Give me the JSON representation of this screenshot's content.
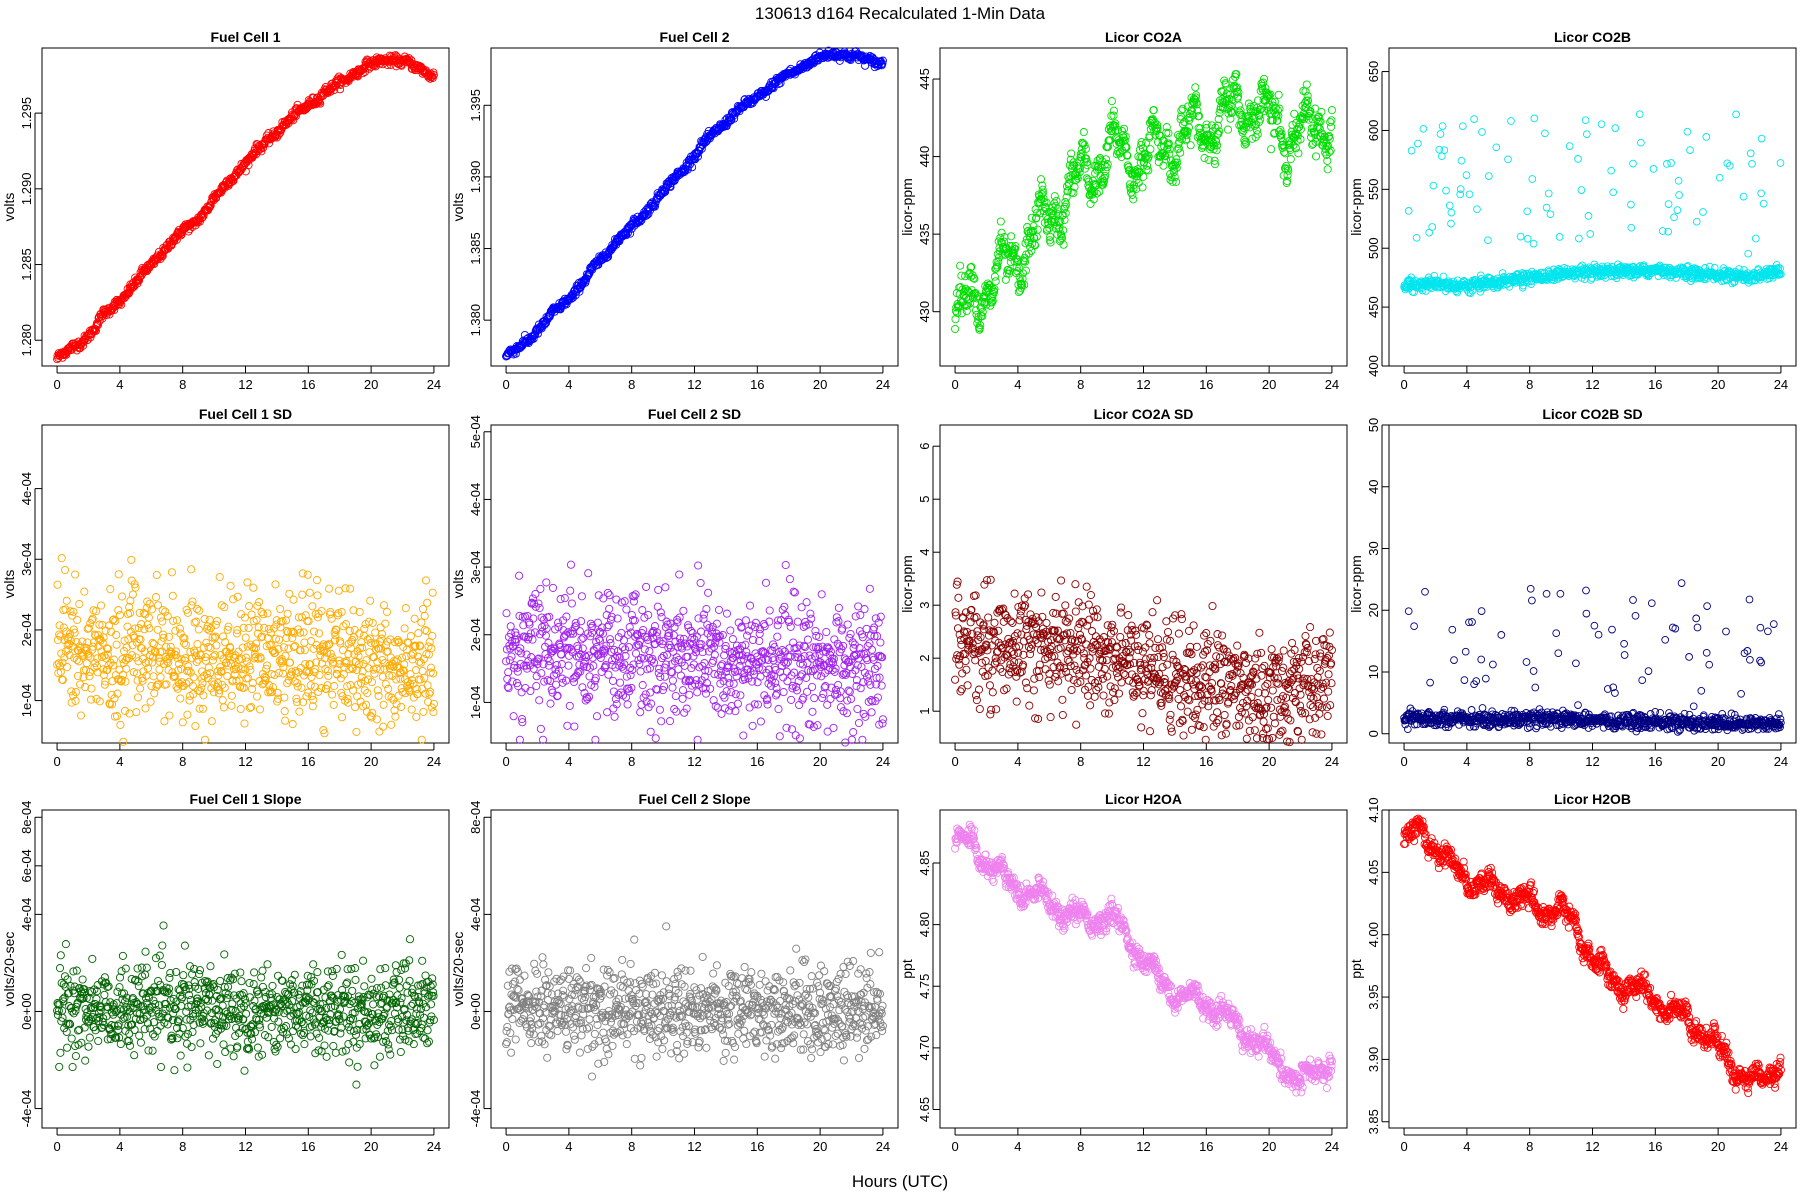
{
  "figure": {
    "title": "130613   d164   Recalculated 1-Min Data",
    "xlabel": "Hours (UTC)"
  },
  "chart_data": [
    {
      "type": "scatter",
      "title": "Fuel Cell 1",
      "ylabel": "volts",
      "color": "#ff0000",
      "xlim": [
        0,
        24
      ],
      "xticks": [
        0,
        4,
        8,
        12,
        16,
        20,
        24
      ],
      "xtick_labels": [
        "0",
        "4",
        "8",
        "12",
        "16",
        "20",
        "24"
      ],
      "ylim": [
        1.2783,
        1.2993
      ],
      "yticks": [
        1.28,
        1.285,
        1.29,
        1.295
      ],
      "ytick_labels": [
        "1.280",
        "1.285",
        "1.290",
        "1.295"
      ],
      "series": [
        {
          "x": [
            0,
            1,
            2,
            3,
            4,
            5,
            6,
            7,
            8,
            9,
            10,
            11,
            12,
            13,
            14,
            15,
            16,
            17,
            18,
            19,
            20,
            21,
            22,
            23,
            24
          ],
          "y": [
            1.2788,
            1.2795,
            1.2803,
            1.2817,
            1.2826,
            1.2838,
            1.285,
            1.2862,
            1.2872,
            1.288,
            1.2893,
            1.2906,
            1.2917,
            1.2928,
            1.2938,
            1.2947,
            1.2956,
            1.2963,
            1.297,
            1.2977,
            1.2982,
            1.2986,
            1.2984,
            1.298,
            1.2975
          ]
        }
      ]
    },
    {
      "type": "scatter",
      "title": "Fuel Cell 2",
      "ylabel": "volts",
      "color": "#0000ff",
      "xlim": [
        0,
        24
      ],
      "xticks": [
        0,
        4,
        8,
        12,
        16,
        20,
        24
      ],
      "xtick_labels": [
        "0",
        "4",
        "8",
        "12",
        "16",
        "20",
        "24"
      ],
      "ylim": [
        1.3768,
        1.399
      ],
      "yticks": [
        1.38,
        1.385,
        1.39,
        1.395
      ],
      "ytick_labels": [
        "1.380",
        "1.385",
        "1.390",
        "1.395"
      ],
      "series": [
        {
          "x": [
            0,
            1,
            2,
            3,
            4,
            5,
            6,
            7,
            8,
            9,
            10,
            11,
            12,
            13,
            14,
            15,
            16,
            17,
            18,
            19,
            20,
            21,
            22,
            23,
            24
          ],
          "y": [
            1.3775,
            1.3782,
            1.3793,
            1.3805,
            1.3815,
            1.3828,
            1.3842,
            1.3855,
            1.3865,
            1.3877,
            1.389,
            1.3902,
            1.3915,
            1.3928,
            1.3939,
            1.3948,
            1.3956,
            1.3964,
            1.3972,
            1.3978,
            1.3983,
            1.3987,
            1.3984,
            1.3982,
            1.398
          ]
        }
      ]
    },
    {
      "type": "scatter",
      "title": "Licor CO2A",
      "ylabel": "licor-ppm",
      "color": "#00dd00",
      "xlim": [
        0,
        24
      ],
      "xticks": [
        0,
        4,
        8,
        12,
        16,
        20,
        24
      ],
      "xtick_labels": [
        "0",
        "4",
        "8",
        "12",
        "16",
        "20",
        "24"
      ],
      "ylim": [
        426.5,
        447.0
      ],
      "yticks": [
        430,
        435,
        440,
        445
      ],
      "ytick_labels": [
        "430",
        "435",
        "440",
        "445"
      ],
      "series": [
        {
          "x": [
            0,
            1,
            2,
            3,
            4,
            5,
            6,
            7,
            8,
            9,
            10,
            11,
            12,
            13,
            14,
            15,
            16,
            17,
            18,
            19,
            20,
            21,
            22,
            23,
            24
          ],
          "y": [
            429.5,
            431.0,
            431.5,
            432.5,
            433.5,
            435.0,
            436.0,
            437.5,
            438.5,
            439.5,
            440.5,
            440.0,
            440.0,
            440.5,
            441.0,
            441.5,
            442.0,
            442.5,
            443.0,
            443.5,
            442.5,
            441.5,
            441.5,
            442.0,
            442.5
          ]
        }
      ]
    },
    {
      "type": "scatter",
      "title": "Licor CO2B",
      "ylabel": "licor-ppm",
      "color": "#00e5ee",
      "xlim": [
        0,
        24
      ],
      "xticks": [
        0,
        4,
        8,
        12,
        16,
        20,
        24
      ],
      "xtick_labels": [
        "0",
        "4",
        "8",
        "12",
        "16",
        "20",
        "24"
      ],
      "ylim": [
        400,
        670
      ],
      "yticks": [
        400,
        450,
        500,
        550,
        600,
        650
      ],
      "ytick_labels": [
        "400",
        "450",
        "500",
        "550",
        "600",
        "650"
      ],
      "series": [
        {
          "x": [
            0,
            2,
            4,
            6,
            8,
            10,
            12,
            14,
            16,
            18,
            20,
            22,
            24
          ],
          "y": [
            468,
            470,
            468,
            472,
            475,
            478,
            479,
            480,
            481,
            479,
            477,
            476,
            480
          ]
        }
      ]
    },
    {
      "type": "scatter",
      "title": "Fuel Cell 1 SD",
      "ylabel": "volts",
      "color": "#ffaa00",
      "xlim": [
        0,
        24
      ],
      "xticks": [
        0,
        4,
        8,
        12,
        16,
        20,
        24
      ],
      "xtick_labels": [
        "0",
        "4",
        "8",
        "12",
        "16",
        "20",
        "24"
      ],
      "ylim": [
        4e-05,
        0.00049
      ],
      "yticks": [
        0.0001,
        0.0002,
        0.0003,
        0.0004
      ],
      "ytick_labels": [
        "1e-04",
        "2e-04",
        "3e-04",
        "4e-04"
      ],
      "series": [
        {
          "x": [
            0,
            2,
            4,
            6,
            8,
            10,
            12,
            14,
            16,
            18,
            20,
            22,
            24
          ],
          "y": [
            0.00018,
            0.00017,
            0.00016,
            0.00017,
            0.00016,
            0.00016,
            0.00017,
            0.00016,
            0.00017,
            0.00016,
            0.00016,
            0.00015,
            0.00016
          ]
        }
      ]
    },
    {
      "type": "scatter",
      "title": "Fuel Cell 2 SD",
      "ylabel": "volts",
      "color": "#a020f0",
      "xlim": [
        0,
        24
      ],
      "xticks": [
        0,
        4,
        8,
        12,
        16,
        20,
        24
      ],
      "xtick_labels": [
        "0",
        "4",
        "8",
        "12",
        "16",
        "20",
        "24"
      ],
      "ylim": [
        4e-05,
        0.00051
      ],
      "yticks": [
        0.0001,
        0.0002,
        0.0003,
        0.0004,
        0.0005
      ],
      "ytick_labels": [
        "1e-04",
        "2e-04",
        "3e-04",
        "4e-04",
        "5e-04"
      ],
      "series": [
        {
          "x": [
            0,
            2,
            4,
            6,
            8,
            10,
            12,
            14,
            16,
            18,
            20,
            22,
            24
          ],
          "y": [
            0.00019,
            0.00018,
            0.00018,
            0.00018,
            0.00017,
            0.00017,
            0.00017,
            0.00016,
            0.00016,
            0.00016,
            0.00016,
            0.00015,
            0.00016
          ]
        }
      ]
    },
    {
      "type": "scatter",
      "title": "Licor CO2A SD",
      "ylabel": "licor-ppm",
      "color": "#8b0000",
      "xlim": [
        0,
        24
      ],
      "xticks": [
        0,
        4,
        8,
        12,
        16,
        20,
        24
      ],
      "xtick_labels": [
        "0",
        "4",
        "8",
        "12",
        "16",
        "20",
        "24"
      ],
      "ylim": [
        0.4,
        6.4
      ],
      "yticks": [
        1,
        2,
        3,
        4,
        5,
        6
      ],
      "ytick_labels": [
        "1",
        "2",
        "3",
        "4",
        "5",
        "6"
      ],
      "series": [
        {
          "x": [
            0,
            2,
            4,
            6,
            8,
            10,
            12,
            14,
            16,
            18,
            20,
            22,
            24
          ],
          "y": [
            2.4,
            2.3,
            2.3,
            2.2,
            2.1,
            2.0,
            1.9,
            1.7,
            1.6,
            1.5,
            1.3,
            1.4,
            1.6
          ]
        }
      ]
    },
    {
      "type": "scatter",
      "title": "Licor CO2B SD",
      "ylabel": "licor-ppm",
      "color": "#000080",
      "xlim": [
        0,
        24
      ],
      "xticks": [
        0,
        4,
        8,
        12,
        16,
        20,
        24
      ],
      "xtick_labels": [
        "0",
        "4",
        "8",
        "12",
        "16",
        "20",
        "24"
      ],
      "ylim": [
        -1.5,
        50
      ],
      "yticks": [
        0,
        10,
        20,
        30,
        40,
        50
      ],
      "ytick_labels": [
        "0",
        "10",
        "20",
        "30",
        "40",
        "50"
      ],
      "series": [
        {
          "x": [
            0,
            2,
            4,
            6,
            8,
            10,
            12,
            14,
            16,
            18,
            20,
            22,
            24
          ],
          "y": [
            2.5,
            2.5,
            2.4,
            2.3,
            2.3,
            2.2,
            2.1,
            2.0,
            1.9,
            1.8,
            1.7,
            1.6,
            1.7
          ]
        }
      ]
    },
    {
      "type": "scatter",
      "title": "Fuel Cell 1 Slope",
      "ylabel": "volts/20-sec",
      "color": "#006400",
      "xlim": [
        0,
        24
      ],
      "xticks": [
        0,
        4,
        8,
        12,
        16,
        20,
        24
      ],
      "xtick_labels": [
        "0",
        "4",
        "8",
        "12",
        "16",
        "20",
        "24"
      ],
      "ylim": [
        -0.00048,
        0.00083
      ],
      "yticks": [
        -0.0004,
        0,
        0.0004,
        0.0006,
        0.0008
      ],
      "ytick_labels": [
        "-4e-04",
        "0e+00",
        "4e-04",
        "6e-04",
        "8e-04"
      ],
      "series": [
        {
          "x": [
            0,
            2,
            4,
            6,
            8,
            10,
            12,
            14,
            16,
            18,
            20,
            22,
            24
          ],
          "y": [
            1e-05,
            1e-05,
            1e-05,
            1e-05,
            1e-05,
            1e-05,
            1e-05,
            1e-05,
            1e-05,
            1e-05,
            0.0,
            0.0,
            0.0
          ]
        }
      ]
    },
    {
      "type": "scatter",
      "title": "Fuel Cell 2 Slope",
      "ylabel": "volts/20-sec",
      "color": "#808080",
      "xlim": [
        0,
        24
      ],
      "xticks": [
        0,
        4,
        8,
        12,
        16,
        20,
        24
      ],
      "xtick_labels": [
        "0",
        "4",
        "8",
        "12",
        "16",
        "20",
        "24"
      ],
      "ylim": [
        -0.00048,
        0.00083
      ],
      "yticks": [
        -0.0004,
        0,
        0.0004,
        0.0008
      ],
      "ytick_labels": [
        "-4e-04",
        "0e+00",
        "4e-04",
        "8e-04"
      ],
      "series": [
        {
          "x": [
            0,
            2,
            4,
            6,
            8,
            10,
            12,
            14,
            16,
            18,
            20,
            22,
            24
          ],
          "y": [
            1e-05,
            1e-05,
            1e-05,
            1e-05,
            1e-05,
            1e-05,
            1e-05,
            1e-05,
            1e-05,
            1e-05,
            0.0,
            0.0,
            0.0
          ]
        }
      ]
    },
    {
      "type": "scatter",
      "title": "Licor H2OA",
      "ylabel": "ppt",
      "color": "#ee82ee",
      "xlim": [
        0,
        24
      ],
      "xticks": [
        0,
        4,
        8,
        12,
        16,
        20,
        24
      ],
      "xtick_labels": [
        "0",
        "4",
        "8",
        "12",
        "16",
        "20",
        "24"
      ],
      "ylim": [
        4.635,
        4.893
      ],
      "yticks": [
        4.65,
        4.7,
        4.75,
        4.8,
        4.85
      ],
      "ytick_labels": [
        "4.65",
        "4.70",
        "4.75",
        "4.80",
        "4.85"
      ],
      "series": [
        {
          "x": [
            0,
            1,
            2,
            3,
            4,
            5,
            6,
            7,
            8,
            9,
            10,
            11,
            12,
            13,
            14,
            15,
            16,
            17,
            18,
            19,
            20,
            21,
            22,
            23,
            24
          ],
          "y": [
            4.865,
            4.87,
            4.85,
            4.84,
            4.83,
            4.825,
            4.82,
            4.81,
            4.805,
            4.805,
            4.805,
            4.79,
            4.77,
            4.755,
            4.745,
            4.74,
            4.735,
            4.728,
            4.718,
            4.708,
            4.695,
            4.682,
            4.672,
            4.68,
            4.69
          ]
        }
      ]
    },
    {
      "type": "scatter",
      "title": "Licor H2OB",
      "ylabel": "ppt",
      "color": "#ff0000",
      "xlim": [
        0,
        24
      ],
      "xticks": [
        0,
        4,
        8,
        12,
        16,
        20,
        24
      ],
      "xtick_labels": [
        "0",
        "4",
        "8",
        "12",
        "16",
        "20",
        "24"
      ],
      "ylim": [
        3.845,
        4.1
      ],
      "yticks": [
        3.85,
        3.9,
        3.95,
        4.0,
        4.05,
        4.1
      ],
      "ytick_labels": [
        "3.85",
        "3.90",
        "3.95",
        "4.00",
        "4.05",
        "4.10"
      ],
      "series": [
        {
          "x": [
            0,
            1,
            2,
            3,
            4,
            5,
            6,
            7,
            8,
            9,
            10,
            11,
            12,
            13,
            14,
            15,
            16,
            17,
            18,
            19,
            20,
            21,
            22,
            23,
            24
          ],
          "y": [
            4.075,
            4.085,
            4.07,
            4.055,
            4.045,
            4.04,
            4.035,
            4.03,
            4.025,
            4.02,
            4.02,
            4.005,
            3.98,
            3.965,
            3.96,
            3.955,
            3.948,
            3.94,
            3.932,
            3.922,
            3.91,
            3.895,
            3.88,
            3.885,
            3.9
          ]
        }
      ]
    }
  ]
}
